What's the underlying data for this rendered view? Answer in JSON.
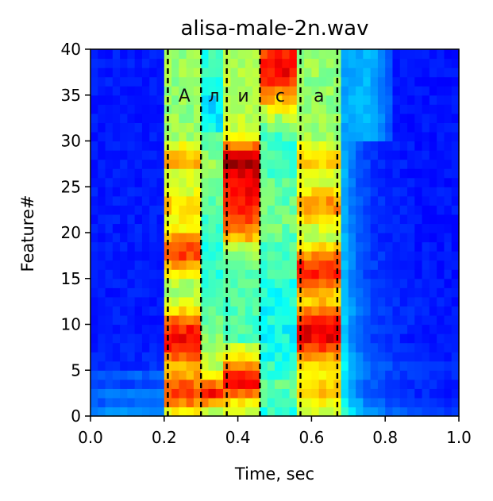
{
  "chart_data": {
    "type": "heatmap",
    "title": "alisa-male-2n.wav",
    "xlabel": "Time, sec",
    "ylabel": "Feature#",
    "xlim": [
      0.0,
      1.0
    ],
    "ylim": [
      0,
      40
    ],
    "x_ticks": [
      "0.0",
      "0.2",
      "0.4",
      "0.6",
      "0.8",
      "1.0"
    ],
    "y_ticks": [
      "0",
      "5",
      "10",
      "15",
      "20",
      "25",
      "30",
      "35",
      "40"
    ],
    "colormap": "jet",
    "grid": false,
    "legend": "none",
    "segment_boundaries": [
      0.21,
      0.3,
      0.37,
      0.46,
      0.57,
      0.67
    ],
    "segments": [
      {
        "label": "А",
        "start": 0.21,
        "end": 0.3
      },
      {
        "label": "л",
        "start": 0.3,
        "end": 0.37
      },
      {
        "label": "и",
        "start": 0.37,
        "end": 0.46
      },
      {
        "label": "с",
        "start": 0.46,
        "end": 0.57
      },
      {
        "label": "а",
        "start": 0.57,
        "end": 0.67
      }
    ],
    "n_frames": 50,
    "n_features": 40
  }
}
